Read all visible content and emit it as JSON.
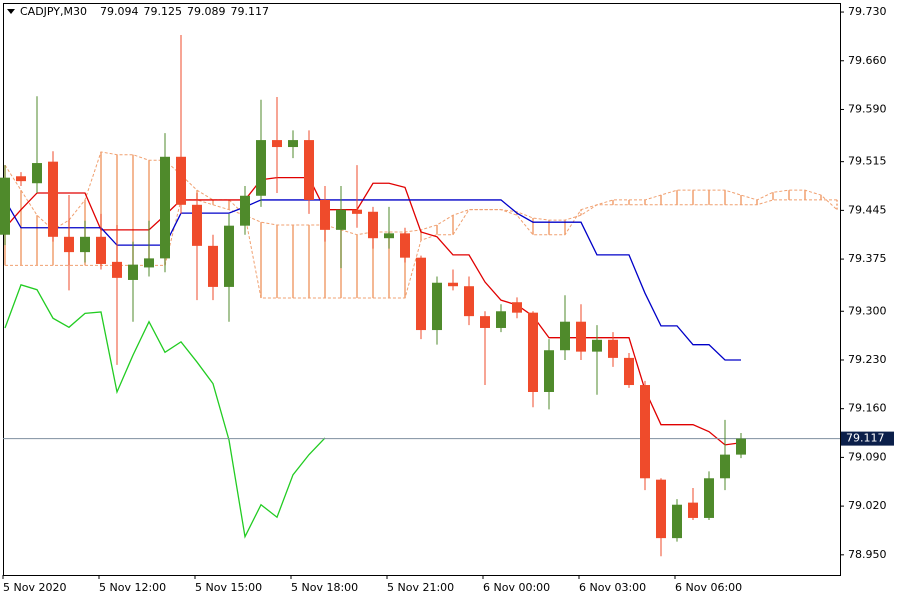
{
  "chart_data": {
    "type": "candlestick",
    "title": "CADJPY,M30",
    "header_values": [
      79.094,
      79.125,
      79.089,
      79.117
    ],
    "categories": [
      "5 Nov 2020",
      null,
      null,
      null,
      null,
      null,
      "5 Nov 12:00",
      null,
      null,
      null,
      null,
      null,
      "5 Nov 15:00",
      null,
      null,
      null,
      null,
      null,
      "5 Nov 18:00",
      null,
      null,
      null,
      null,
      null,
      "5 Nov 21:00",
      null,
      null,
      null,
      null,
      null,
      "6 Nov 00:00",
      null,
      null,
      null,
      null,
      null,
      "6 Nov 03:00",
      null,
      null,
      null,
      null,
      null,
      "6 Nov 06:00",
      null,
      null,
      null,
      null,
      null,
      null,
      null,
      null,
      null,
      null
    ],
    "open": [
      79.41,
      79.494,
      79.484,
      79.515,
      79.407,
      79.385,
      79.407,
      79.371,
      79.345,
      79.363,
      79.376,
      79.522,
      79.453,
      79.394,
      79.335,
      79.423,
      79.466,
      79.546,
      79.536,
      79.546,
      79.46,
      79.417,
      79.446,
      79.443,
      79.405,
      79.412,
      79.377,
      79.273,
      79.341,
      79.336,
      79.293,
      79.276,
      79.313,
      79.298,
      79.184,
      79.244,
      79.285,
      79.242,
      79.259,
      79.233,
      79.194,
      79.058,
      78.974,
      79.025,
      79.003,
      79.06,
      79.094,
      null,
      null,
      null,
      null,
      null,
      null
    ],
    "high": [
      79.51,
      79.5,
      79.609,
      79.53,
      79.467,
      79.43,
      79.44,
      79.424,
      79.4,
      79.43,
      79.556,
      79.697,
      79.47,
      79.41,
      79.44,
      79.48,
      79.604,
      79.608,
      79.56,
      79.56,
      79.48,
      79.48,
      79.51,
      79.45,
      79.45,
      79.42,
      79.38,
      79.35,
      79.36,
      79.35,
      79.3,
      79.31,
      79.32,
      79.3,
      79.26,
      79.323,
      79.31,
      79.28,
      79.27,
      79.24,
      79.2,
      79.06,
      79.03,
      79.046,
      79.07,
      79.144,
      79.125,
      null,
      null,
      null,
      null,
      null,
      null
    ],
    "low": [
      79.395,
      79.48,
      79.47,
      79.4,
      79.33,
      79.37,
      79.36,
      79.223,
      79.285,
      79.35,
      79.356,
      79.44,
      79.316,
      79.316,
      79.285,
      79.41,
      79.45,
      79.47,
      79.52,
      79.44,
      79.4,
      79.362,
      79.42,
      79.39,
      79.39,
      79.37,
      79.26,
      79.252,
      79.33,
      79.28,
      79.194,
      79.27,
      79.29,
      79.162,
      79.159,
      79.23,
      79.23,
      79.18,
      79.22,
      79.19,
      79.043,
      78.948,
      78.969,
      79.0,
      79.0,
      79.043,
      79.089,
      null,
      null,
      null,
      null,
      null,
      null
    ],
    "close": [
      79.492,
      79.487,
      79.513,
      79.407,
      79.385,
      79.407,
      79.368,
      79.348,
      79.367,
      79.376,
      79.522,
      79.453,
      79.394,
      79.335,
      79.423,
      79.466,
      79.546,
      79.536,
      79.546,
      79.46,
      79.417,
      79.446,
      79.44,
      79.405,
      79.412,
      79.377,
      79.273,
      79.341,
      79.336,
      79.293,
      79.276,
      79.3,
      79.298,
      79.184,
      79.244,
      79.285,
      79.242,
      79.259,
      79.233,
      79.194,
      79.06,
      78.974,
      79.022,
      79.003,
      79.06,
      79.094,
      79.117,
      null,
      null,
      null,
      null,
      null,
      null
    ],
    "up_color": "#4f8a2b",
    "down_color": "#ef4b2b",
    "lines": [
      {
        "color": "#e00000",
        "values": [
          79.42,
          79.446,
          79.47,
          79.47,
          79.47,
          79.47,
          79.417,
          79.417,
          79.417,
          79.417,
          79.438,
          79.46,
          79.46,
          79.46,
          79.46,
          79.46,
          79.489,
          79.492,
          79.492,
          79.492,
          79.446,
          79.446,
          79.446,
          79.484,
          79.484,
          79.478,
          79.414,
          79.407,
          79.381,
          79.381,
          79.342,
          79.316,
          79.309,
          79.293,
          79.262,
          79.262,
          79.262,
          79.262,
          79.262,
          79.262,
          79.187,
          79.137,
          79.137,
          79.137,
          79.127,
          79.108,
          79.111,
          null,
          null,
          null,
          null,
          null,
          null
        ]
      },
      {
        "color": "#0000c8",
        "values": [
          79.46,
          79.42,
          79.42,
          79.42,
          79.42,
          79.42,
          79.42,
          79.395,
          79.395,
          79.395,
          79.395,
          79.441,
          79.441,
          79.441,
          79.441,
          79.45,
          79.46,
          79.46,
          79.46,
          79.46,
          79.46,
          79.46,
          79.46,
          79.46,
          79.46,
          79.46,
          79.46,
          79.46,
          79.46,
          79.46,
          79.46,
          79.46,
          79.441,
          79.428,
          79.428,
          79.428,
          79.428,
          79.381,
          79.381,
          79.381,
          79.326,
          79.279,
          79.279,
          79.252,
          79.252,
          79.23,
          79.23,
          null,
          null,
          null,
          null,
          null,
          null
        ]
      },
      {
        "color": "#22cc22",
        "values": [
          79.276,
          79.338,
          79.331,
          79.29,
          79.277,
          79.297,
          79.299,
          79.184,
          79.237,
          79.285,
          79.241,
          79.256,
          79.227,
          79.196,
          79.115,
          78.976,
          79.022,
          79.004,
          79.065,
          79.094,
          79.118,
          null,
          null,
          null,
          null,
          null,
          null,
          null,
          null,
          null,
          null,
          null,
          null,
          null,
          null,
          null,
          null,
          null,
          null,
          null,
          null,
          null,
          null,
          null,
          null,
          null,
          null,
          null,
          null,
          null,
          null,
          null,
          null
        ]
      }
    ],
    "cloud": {
      "color": "#f0a070",
      "span_a": [
        79.51,
        79.474,
        79.438,
        79.417,
        79.431,
        79.46,
        79.529,
        79.525,
        79.525,
        79.517,
        79.517,
        79.496,
        79.474,
        79.46,
        79.46,
        79.438,
        79.428,
        79.424,
        79.424,
        79.424,
        79.424,
        79.417,
        79.41,
        79.414,
        79.414,
        79.414,
        79.417,
        79.424,
        79.438,
        79.446,
        79.446,
        79.446,
        79.443,
        79.434,
        79.431,
        79.431,
        79.438,
        79.453,
        79.46,
        79.46,
        79.46,
        79.467,
        79.474,
        79.474,
        79.474,
        79.474,
        79.467,
        79.46,
        79.471,
        79.474,
        79.474,
        79.467,
        79.446
      ],
      "span_b": [
        79.366,
        79.366,
        79.366,
        79.366,
        79.366,
        79.366,
        79.366,
        79.366,
        79.366,
        79.366,
        79.366,
        79.46,
        79.46,
        79.453,
        79.446,
        79.438,
        79.319,
        79.319,
        79.319,
        79.319,
        79.319,
        79.319,
        79.319,
        79.319,
        79.319,
        79.319,
        79.402,
        79.41,
        79.41,
        79.446,
        79.446,
        79.446,
        79.438,
        79.41,
        79.41,
        79.41,
        79.446,
        79.453,
        79.453,
        79.453,
        79.453,
        79.453,
        79.453,
        79.453,
        79.453,
        79.453,
        79.453,
        79.453,
        79.46,
        79.46,
        79.46,
        79.46,
        79.46
      ]
    },
    "current_price": 79.117,
    "ylim": [
      78.921,
      79.743
    ],
    "yticks": [
      {
        "value": 79.73,
        "label": "79.730"
      },
      {
        "value": 79.66,
        "label": "79.660"
      },
      {
        "value": 79.59,
        "label": "79.590"
      },
      79.515,
      79.445,
      79.375,
      {
        "value": 79.3,
        "label": "79.300"
      },
      {
        "value": 79.23,
        "label": "79.230"
      },
      {
        "value": 79.16,
        "label": "79.160"
      },
      {
        "value": 79.09,
        "label": "79.090"
      },
      {
        "value": 79.02,
        "label": "79.020"
      },
      {
        "value": 78.95,
        "label": "78.950"
      }
    ]
  }
}
